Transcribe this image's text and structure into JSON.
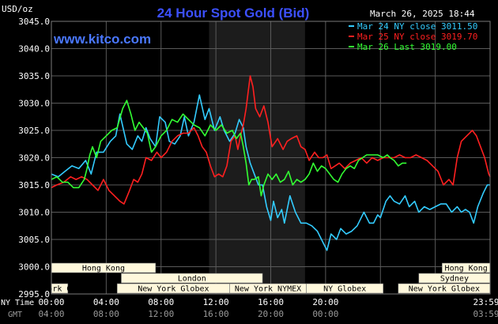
{
  "header": {
    "title": "24 Hour Spot Gold (Bid)",
    "timestamp": "March 26, 2025 18:44",
    "unit": "USD/oz",
    "watermark": "www.kitco.com"
  },
  "colors": {
    "background": "#000000",
    "plot_bg": "#000000",
    "grid": "#5a5a5a",
    "title": "#3c50ff",
    "watermark": "#4a78ff",
    "text": "#ffffff",
    "gmt_text": "#9a9a9a",
    "shade": "#1c1c1c",
    "session_fill": "#fff8dc",
    "session_text": "#000000"
  },
  "chart_data": {
    "type": "line",
    "ylim": [
      2995,
      3045
    ],
    "yticks": [
      "3045.0",
      "3040.0",
      "3035.0",
      "3030.0",
      "3025.0",
      "3020.0",
      "3015.0",
      "3010.0",
      "3005.0",
      "3000.0",
      "2995.0"
    ],
    "x_row_label": "NY Time",
    "x_tick_labels": [
      "00:00",
      "04:00",
      "08:00",
      "12:00",
      "16:00",
      "20:00",
      "23:59"
    ],
    "gmt_row_label": "GMT",
    "gmt_tick_labels": [
      "04:00",
      "08:00",
      "12:00",
      "16:00",
      "20:00",
      "00:00",
      "03:59"
    ],
    "grid": true,
    "legend_position": "top-right",
    "shaded_x_range": [
      11.5,
      18.5
    ],
    "sessions": [
      {
        "label": "Hong Kong",
        "x0": 0.0,
        "x1": 7.6
      },
      {
        "label": "Hong Kong",
        "x0": 28.5,
        "x1": 32.0
      },
      {
        "label": "London",
        "x0": 5.1,
        "x1": 15.4
      },
      {
        "label": "Sydney",
        "x0": 26.8,
        "x1": 32.0
      },
      {
        "label": "New York Globex",
        "x0": 0.0,
        "x1": 1.2
      },
      {
        "label": "New York Globex",
        "x0": 4.8,
        "x1": 13.0
      },
      {
        "label": "New York NYMEX",
        "x0": 13.0,
        "x1": 18.6
      },
      {
        "label": "NY Globex",
        "x0": 18.6,
        "x1": 24.2
      },
      {
        "label": "New York Globex",
        "x0": 25.3,
        "x1": 32.0
      }
    ],
    "series": [
      {
        "name": "Mar 24 NY close 3011.50",
        "color": "#33ccff",
        "points": [
          [
            0,
            3017
          ],
          [
            0.5,
            3016.5
          ],
          [
            1,
            3017.5
          ],
          [
            1.5,
            3018.5
          ],
          [
            2,
            3018
          ],
          [
            2.5,
            3019.5
          ],
          [
            2.9,
            3017
          ],
          [
            3.3,
            3021
          ],
          [
            3.8,
            3021
          ],
          [
            4.3,
            3023
          ],
          [
            4.7,
            3024
          ],
          [
            5,
            3028
          ],
          [
            5.5,
            3022.5
          ],
          [
            5.9,
            3021.5
          ],
          [
            6.3,
            3024
          ],
          [
            6.6,
            3023
          ],
          [
            6.9,
            3025.5
          ],
          [
            7.2,
            3023.5
          ],
          [
            7.6,
            3022
          ],
          [
            7.9,
            3027.5
          ],
          [
            8.3,
            3026.5
          ],
          [
            8.6,
            3023
          ],
          [
            9,
            3022.5
          ],
          [
            9.4,
            3024
          ],
          [
            9.7,
            3027.5
          ],
          [
            10,
            3024
          ],
          [
            10.4,
            3026.5
          ],
          [
            10.8,
            3031.5
          ],
          [
            11.2,
            3027
          ],
          [
            11.5,
            3029
          ],
          [
            11.9,
            3025
          ],
          [
            12.3,
            3027.5
          ],
          [
            12.6,
            3025
          ],
          [
            13,
            3023
          ],
          [
            13.4,
            3024.5
          ],
          [
            13.7,
            3027
          ],
          [
            14,
            3025.5
          ],
          [
            14.2,
            3022
          ],
          [
            14.5,
            3019
          ],
          [
            14.8,
            3017
          ],
          [
            15.1,
            3015
          ],
          [
            15.4,
            3015
          ],
          [
            15.7,
            3011
          ],
          [
            16,
            3008.5
          ],
          [
            16.2,
            3012
          ],
          [
            16.5,
            3009
          ],
          [
            16.8,
            3010.5
          ],
          [
            17,
            3008
          ],
          [
            17.4,
            3013
          ],
          [
            17.8,
            3010
          ],
          [
            18.2,
            3008
          ],
          [
            18.6,
            3008
          ],
          [
            19,
            3007.5
          ],
          [
            19.4,
            3006.5
          ],
          [
            19.8,
            3004.5
          ],
          [
            20.1,
            3003
          ],
          [
            20.4,
            3006
          ],
          [
            20.8,
            3005
          ],
          [
            21.1,
            3007
          ],
          [
            21.5,
            3006
          ],
          [
            21.9,
            3006.5
          ],
          [
            22.3,
            3007.5
          ],
          [
            22.8,
            3010
          ],
          [
            23.2,
            3008
          ],
          [
            23.5,
            3008
          ],
          [
            23.8,
            3009.5
          ],
          [
            24,
            3009
          ],
          [
            24.4,
            3012
          ],
          [
            24.7,
            3013
          ],
          [
            25,
            3012
          ],
          [
            25.4,
            3011.5
          ],
          [
            25.8,
            3013
          ],
          [
            26.1,
            3011
          ],
          [
            26.5,
            3012
          ],
          [
            26.8,
            3010
          ],
          [
            27.2,
            3011
          ],
          [
            27.6,
            3010.5
          ],
          [
            28,
            3011
          ],
          [
            28.4,
            3011.5
          ],
          [
            28.8,
            3011.5
          ],
          [
            29.2,
            3010
          ],
          [
            29.6,
            3011
          ],
          [
            29.9,
            3010
          ],
          [
            30.2,
            3010.5
          ],
          [
            30.5,
            3010
          ],
          [
            30.8,
            3008
          ],
          [
            31.1,
            3011
          ],
          [
            31.5,
            3013.5
          ],
          [
            31.8,
            3015
          ],
          [
            32,
            3015
          ]
        ]
      },
      {
        "name": "Mar 25 NY close 3019.70",
        "color": "#ff2020",
        "points": [
          [
            0,
            3014.5
          ],
          [
            0.4,
            3015
          ],
          [
            0.9,
            3015.5
          ],
          [
            1.4,
            3016.5
          ],
          [
            1.8,
            3016
          ],
          [
            2.2,
            3016.5
          ],
          [
            2.6,
            3016
          ],
          [
            3,
            3015
          ],
          [
            3.4,
            3014
          ],
          [
            3.8,
            3016
          ],
          [
            4.2,
            3014
          ],
          [
            4.6,
            3013
          ],
          [
            5,
            3012
          ],
          [
            5.3,
            3011.5
          ],
          [
            5.7,
            3014
          ],
          [
            6,
            3016
          ],
          [
            6.3,
            3015.5
          ],
          [
            6.6,
            3017
          ],
          [
            6.9,
            3020
          ],
          [
            7.3,
            3019.5
          ],
          [
            7.7,
            3021
          ],
          [
            8,
            3020
          ],
          [
            8.4,
            3021
          ],
          [
            8.8,
            3023
          ],
          [
            9.2,
            3024
          ],
          [
            9.6,
            3024.5
          ],
          [
            10,
            3024.5
          ],
          [
            10.4,
            3025.5
          ],
          [
            10.7,
            3024
          ],
          [
            11,
            3022
          ],
          [
            11.3,
            3021
          ],
          [
            11.6,
            3018.5
          ],
          [
            11.9,
            3016.5
          ],
          [
            12.2,
            3017
          ],
          [
            12.5,
            3016.5
          ],
          [
            12.8,
            3018.5
          ],
          [
            13.1,
            3023
          ],
          [
            13.4,
            3024
          ],
          [
            13.6,
            3021.5
          ],
          [
            13.8,
            3024
          ],
          [
            14,
            3026
          ],
          [
            14.2,
            3029
          ],
          [
            14.5,
            3035
          ],
          [
            14.7,
            3033
          ],
          [
            14.9,
            3029
          ],
          [
            15.2,
            3027.5
          ],
          [
            15.5,
            3029.5
          ],
          [
            15.8,
            3026.5
          ],
          [
            16.1,
            3022
          ],
          [
            16.5,
            3023.5
          ],
          [
            16.9,
            3021.5
          ],
          [
            17.2,
            3023
          ],
          [
            17.5,
            3023.5
          ],
          [
            17.9,
            3024
          ],
          [
            18.2,
            3022
          ],
          [
            18.5,
            3021.5
          ],
          [
            18.8,
            3019.5
          ],
          [
            19.2,
            3021
          ],
          [
            19.5,
            3020
          ],
          [
            19.8,
            3020
          ],
          [
            20.1,
            3020.5
          ],
          [
            20.4,
            3018
          ],
          [
            20.7,
            3018.5
          ],
          [
            21,
            3019
          ],
          [
            21.4,
            3018
          ],
          [
            21.8,
            3019
          ],
          [
            22.2,
            3019.5
          ],
          [
            22.6,
            3020
          ],
          [
            23,
            3019
          ],
          [
            23.4,
            3020
          ],
          [
            23.8,
            3019.5
          ],
          [
            24.2,
            3020
          ],
          [
            24.6,
            3020
          ],
          [
            25,
            3020
          ],
          [
            25.4,
            3020.5
          ],
          [
            25.8,
            3020
          ],
          [
            26.2,
            3020
          ],
          [
            26.6,
            3020.5
          ],
          [
            27,
            3020
          ],
          [
            27.4,
            3019.5
          ],
          [
            27.8,
            3018.5
          ],
          [
            28.2,
            3017.5
          ],
          [
            28.6,
            3015
          ],
          [
            29,
            3016
          ],
          [
            29.3,
            3015
          ],
          [
            29.6,
            3020
          ],
          [
            29.9,
            3023
          ],
          [
            30.3,
            3024
          ],
          [
            30.7,
            3025
          ],
          [
            31,
            3024
          ],
          [
            31.3,
            3022
          ],
          [
            31.6,
            3020
          ],
          [
            31.9,
            3017
          ],
          [
            32,
            3016.5
          ]
        ]
      },
      {
        "name": "Mar 26 Last 3019.00",
        "color": "#33ff33",
        "points": [
          [
            0,
            3016
          ],
          [
            0.4,
            3016.5
          ],
          [
            0.8,
            3015.5
          ],
          [
            1.2,
            3015.5
          ],
          [
            1.6,
            3014.5
          ],
          [
            2,
            3014.5
          ],
          [
            2.4,
            3016
          ],
          [
            2.6,
            3018
          ],
          [
            2.8,
            3020.5
          ],
          [
            3,
            3022
          ],
          [
            3.3,
            3020
          ],
          [
            3.6,
            3023
          ],
          [
            4,
            3024
          ],
          [
            4.4,
            3025
          ],
          [
            4.8,
            3025.5
          ],
          [
            5.2,
            3029
          ],
          [
            5.5,
            3030.5
          ],
          [
            5.8,
            3028
          ],
          [
            6.1,
            3025
          ],
          [
            6.4,
            3026.5
          ],
          [
            6.7,
            3025.5
          ],
          [
            7,
            3024.5
          ],
          [
            7.3,
            3021
          ],
          [
            7.6,
            3022
          ],
          [
            8,
            3024
          ],
          [
            8.4,
            3025
          ],
          [
            8.8,
            3027
          ],
          [
            9.2,
            3026.5
          ],
          [
            9.6,
            3028
          ],
          [
            10,
            3027
          ],
          [
            10.4,
            3026
          ],
          [
            10.8,
            3025.5
          ],
          [
            11.2,
            3024
          ],
          [
            11.6,
            3026
          ],
          [
            12,
            3025
          ],
          [
            12.4,
            3026
          ],
          [
            12.8,
            3024.5
          ],
          [
            13.2,
            3025
          ],
          [
            13.5,
            3023.5
          ],
          [
            13.8,
            3024.5
          ],
          [
            14,
            3022
          ],
          [
            14.2,
            3019
          ],
          [
            14.4,
            3015
          ],
          [
            14.6,
            3016
          ],
          [
            14.8,
            3016
          ],
          [
            15.1,
            3016.5
          ],
          [
            15.3,
            3013
          ],
          [
            15.5,
            3015
          ],
          [
            15.8,
            3017
          ],
          [
            16.1,
            3016
          ],
          [
            16.4,
            3017
          ],
          [
            16.7,
            3015.5
          ],
          [
            17,
            3016
          ],
          [
            17.3,
            3017.5
          ],
          [
            17.6,
            3015
          ],
          [
            17.9,
            3016
          ],
          [
            18.2,
            3015.5
          ],
          [
            18.5,
            3016
          ],
          [
            18.8,
            3017
          ],
          [
            19.1,
            3019
          ],
          [
            19.4,
            3017.5
          ],
          [
            19.7,
            3018.5
          ],
          [
            20,
            3018
          ],
          [
            20.3,
            3017
          ],
          [
            20.6,
            3016
          ],
          [
            20.9,
            3015.5
          ],
          [
            21.2,
            3017
          ],
          [
            21.5,
            3018
          ],
          [
            21.8,
            3018.5
          ],
          [
            22.1,
            3018
          ],
          [
            22.4,
            3019.5
          ],
          [
            22.7,
            3020
          ],
          [
            23,
            3020.5
          ],
          [
            23.4,
            3020.5
          ],
          [
            23.8,
            3020.5
          ],
          [
            24.2,
            3020
          ],
          [
            24.5,
            3020.5
          ],
          [
            24.7,
            3020
          ],
          [
            25,
            3019.5
          ],
          [
            25.3,
            3018.5
          ],
          [
            25.6,
            3019
          ],
          [
            25.9,
            3019
          ]
        ]
      }
    ]
  }
}
